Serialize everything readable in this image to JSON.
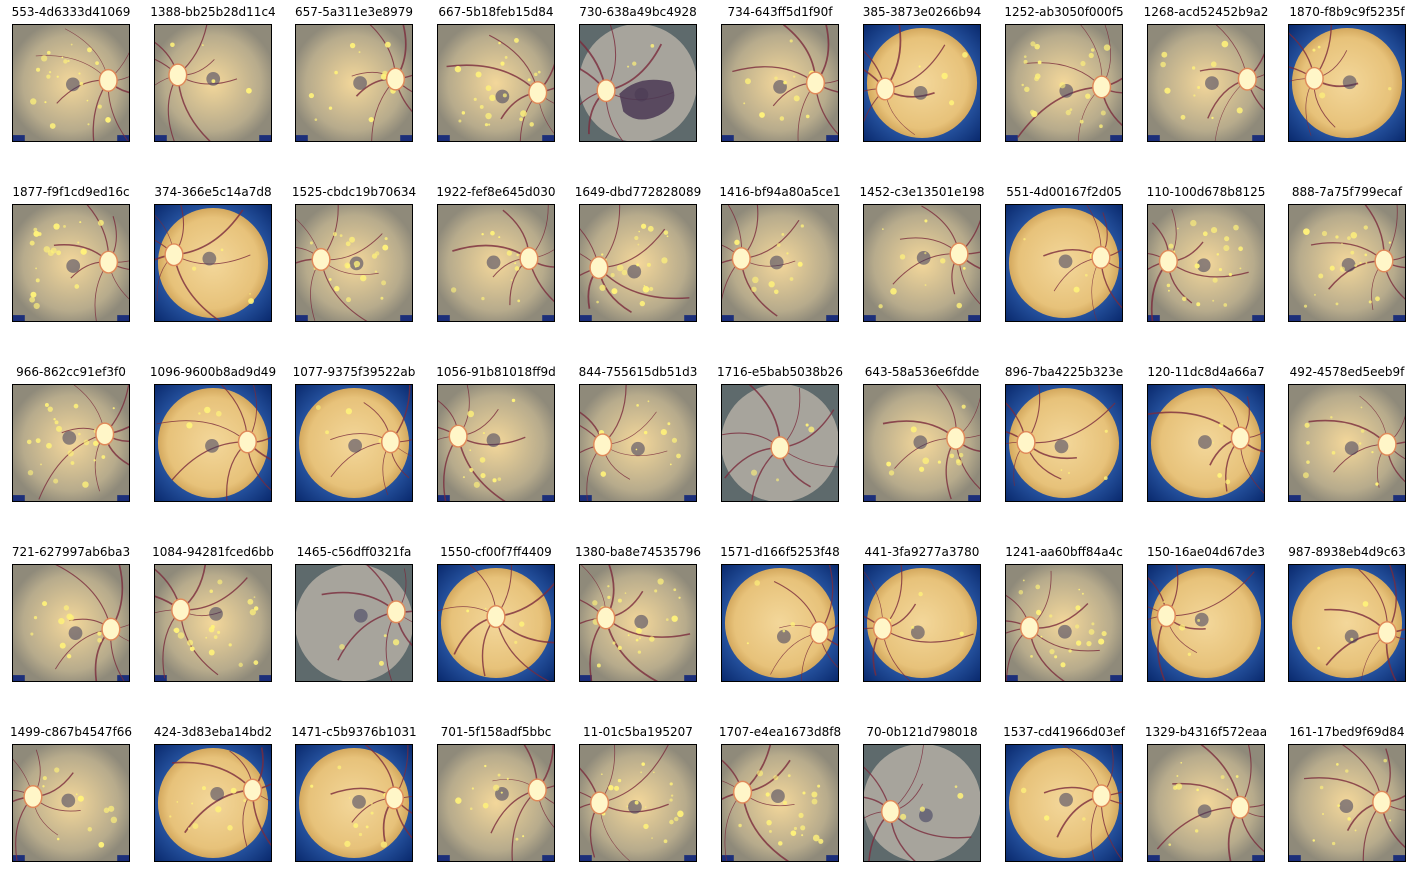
{
  "figure": {
    "rows": [
      [
        {
          "title": "553-4d6333d41069",
          "style": "crop",
          "disc": "right",
          "lesion": "heavy"
        },
        {
          "title": "1388-bb25b28d11c4",
          "style": "crop",
          "disc": "left",
          "lesion": "light"
        },
        {
          "title": "657-5a311e3e8979",
          "style": "crop",
          "disc": "right",
          "lesion": "medium"
        },
        {
          "title": "667-5b18feb15d84",
          "style": "crop",
          "disc": "right",
          "lesion": "heavy"
        },
        {
          "title": "730-638a49bc4928",
          "style": "gray",
          "disc": "left",
          "lesion": "dark"
        },
        {
          "title": "734-643ff5d1f90f",
          "style": "crop",
          "disc": "right",
          "lesion": "medium"
        },
        {
          "title": "385-3873e0266b94",
          "style": "circle",
          "disc": "left",
          "lesion": "light"
        },
        {
          "title": "1252-ab3050f000f5",
          "style": "crop",
          "disc": "right",
          "lesion": "heavy"
        },
        {
          "title": "1268-acd52452b9a2",
          "style": "crop",
          "disc": "right",
          "lesion": "medium"
        },
        {
          "title": "1870-f8b9c9f5235f",
          "style": "circle",
          "disc": "left",
          "lesion": "light"
        }
      ],
      [
        {
          "title": "1877-f9f1cd9ed16c",
          "style": "crop",
          "disc": "right",
          "lesion": "heavy"
        },
        {
          "title": "374-366e5c14a7d8",
          "style": "circle",
          "disc": "left",
          "lesion": "light"
        },
        {
          "title": "1525-cbdc19b70634",
          "style": "crop",
          "disc": "left",
          "lesion": "heavy"
        },
        {
          "title": "1922-fef8e645d030",
          "style": "crop",
          "disc": "right",
          "lesion": "medium"
        },
        {
          "title": "1649-dbd772828089",
          "style": "crop",
          "disc": "left",
          "lesion": "heavy"
        },
        {
          "title": "1416-bf94a80a5ce1",
          "style": "crop",
          "disc": "left",
          "lesion": "medium"
        },
        {
          "title": "1452-c3e13501e198",
          "style": "crop",
          "disc": "right",
          "lesion": "medium"
        },
        {
          "title": "551-4d00167f2d05",
          "style": "circle",
          "disc": "right",
          "lesion": "light"
        },
        {
          "title": "110-100d678b8125",
          "style": "crop",
          "disc": "left",
          "lesion": "heavy"
        },
        {
          "title": "888-7a75f799ecaf",
          "style": "crop",
          "disc": "right",
          "lesion": "heavy"
        }
      ],
      [
        {
          "title": "966-862cc91ef3f0",
          "style": "crop",
          "disc": "right",
          "lesion": "heavy"
        },
        {
          "title": "1096-9600b8ad9d49",
          "style": "circle",
          "disc": "right",
          "lesion": "light"
        },
        {
          "title": "1077-9375f39522ab",
          "style": "circle",
          "disc": "right",
          "lesion": "light"
        },
        {
          "title": "1056-91b81018ff9d",
          "style": "crop",
          "disc": "left",
          "lesion": "medium"
        },
        {
          "title": "844-755615db51d3",
          "style": "crop",
          "disc": "left",
          "lesion": "medium"
        },
        {
          "title": "1716-e5bab5038b26",
          "style": "gray",
          "disc": "center",
          "lesion": "light"
        },
        {
          "title": "643-58a536e6fdde",
          "style": "crop",
          "disc": "right",
          "lesion": "medium"
        },
        {
          "title": "896-7ba4225b323e",
          "style": "circle",
          "disc": "left",
          "lesion": "light"
        },
        {
          "title": "120-11dc8d4a66a7",
          "style": "circle",
          "disc": "right",
          "lesion": "light"
        },
        {
          "title": "492-4578ed5eeb9f",
          "style": "crop",
          "disc": "right",
          "lesion": "medium"
        }
      ],
      [
        {
          "title": "721-627997ab6ba3",
          "style": "crop",
          "disc": "right",
          "lesion": "medium"
        },
        {
          "title": "1084-94281fced6bb",
          "style": "crop",
          "disc": "left",
          "lesion": "heavy"
        },
        {
          "title": "1465-c56dff0321fa",
          "style": "gray",
          "disc": "right",
          "lesion": "light"
        },
        {
          "title": "1550-cf00f7ff4409",
          "style": "circle",
          "disc": "center",
          "lesion": "light"
        },
        {
          "title": "1380-ba8e74535796",
          "style": "crop",
          "disc": "left",
          "lesion": "heavy"
        },
        {
          "title": "1571-d166f5253f48",
          "style": "circle",
          "disc": "right",
          "lesion": "light"
        },
        {
          "title": "441-3fa9277a3780",
          "style": "circle",
          "disc": "left",
          "lesion": "light"
        },
        {
          "title": "1241-aa60bff84a4c",
          "style": "crop",
          "disc": "left",
          "lesion": "heavy"
        },
        {
          "title": "150-16ae04d67de3",
          "style": "circle",
          "disc": "left",
          "lesion": "light"
        },
        {
          "title": "987-8938eb4d9c63",
          "style": "circle",
          "disc": "right",
          "lesion": "light"
        }
      ],
      [
        {
          "title": "1499-c867b4547f66",
          "style": "crop",
          "disc": "left",
          "lesion": "medium"
        },
        {
          "title": "424-3d83eba14bd2",
          "style": "circle",
          "disc": "right",
          "lesion": "medium"
        },
        {
          "title": "1471-c5b9376b1031",
          "style": "circle",
          "disc": "right",
          "lesion": "medium"
        },
        {
          "title": "701-5f158adf5bbc",
          "style": "crop",
          "disc": "right",
          "lesion": "medium"
        },
        {
          "title": "11-01c5ba195207",
          "style": "crop",
          "disc": "left",
          "lesion": "heavy"
        },
        {
          "title": "1707-e4ea1673d8f8",
          "style": "crop",
          "disc": "left",
          "lesion": "heavy"
        },
        {
          "title": "70-0b121d798018",
          "style": "gray",
          "disc": "left",
          "lesion": "light"
        },
        {
          "title": "1537-cd41966d03ef",
          "style": "circle",
          "disc": "right",
          "lesion": "light"
        },
        {
          "title": "1329-b4316f572eaa",
          "style": "crop",
          "disc": "right",
          "lesion": "medium"
        },
        {
          "title": "161-17bed9f69d84",
          "style": "crop",
          "disc": "right",
          "lesion": "medium"
        }
      ]
    ]
  },
  "colors": {
    "fundus_warm": "#e7c27a",
    "fundus_muted": "#b7ab8c",
    "fundus_gray": "#a7a49c",
    "vignette_blue": "#0a2a6e",
    "optic_disc": "#fff6c8",
    "exudate": "#fff27a",
    "vessel": "#7a2a3c",
    "macula": "#3c3a5c"
  }
}
